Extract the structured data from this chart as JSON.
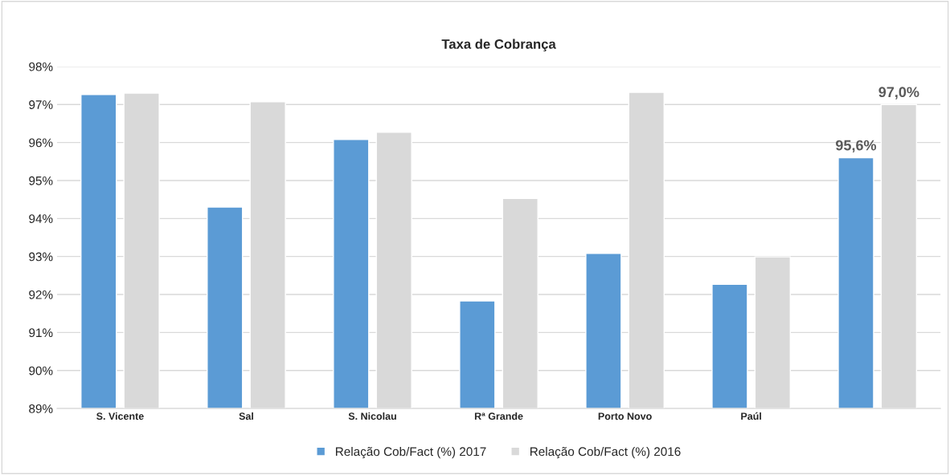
{
  "chart_data": {
    "type": "bar",
    "title": "Taxa de Cobrança",
    "categories": [
      "S. Vicente",
      "Sal",
      "S. Nicolau",
      "Rª Grande",
      "Porto Novo",
      "Paúl",
      null
    ],
    "series": [
      {
        "name": "Relação Cob/Fact (%) 2017",
        "color": "#5b9bd5",
        "values": [
          97.26,
          94.3,
          96.08,
          91.83,
          93.08,
          92.27,
          95.6
        ],
        "value_labels": [
          null,
          null,
          null,
          null,
          null,
          null,
          "95,6%"
        ]
      },
      {
        "name": "Relação Cob/Fact (%) 2016",
        "color": "#d9d9d9",
        "values": [
          97.3,
          97.07,
          96.27,
          94.53,
          97.32,
          92.99,
          97.0
        ],
        "value_labels": [
          null,
          null,
          null,
          null,
          null,
          null,
          "97,0%"
        ]
      }
    ],
    "ylim": [
      89,
      98
    ],
    "yticks": [
      {
        "value": 89,
        "label": "89%"
      },
      {
        "value": 90,
        "label": "90%"
      },
      {
        "value": 91,
        "label": "91%"
      },
      {
        "value": 92,
        "label": "92%"
      },
      {
        "value": 93,
        "label": "93%"
      },
      {
        "value": 94,
        "label": "94%"
      },
      {
        "value": 95,
        "label": "95%"
      },
      {
        "value": 96,
        "label": "96%"
      },
      {
        "value": 97,
        "label": "97%"
      },
      {
        "value": 98,
        "label": "98%"
      }
    ],
    "grid": "y",
    "legend": "bottom"
  }
}
